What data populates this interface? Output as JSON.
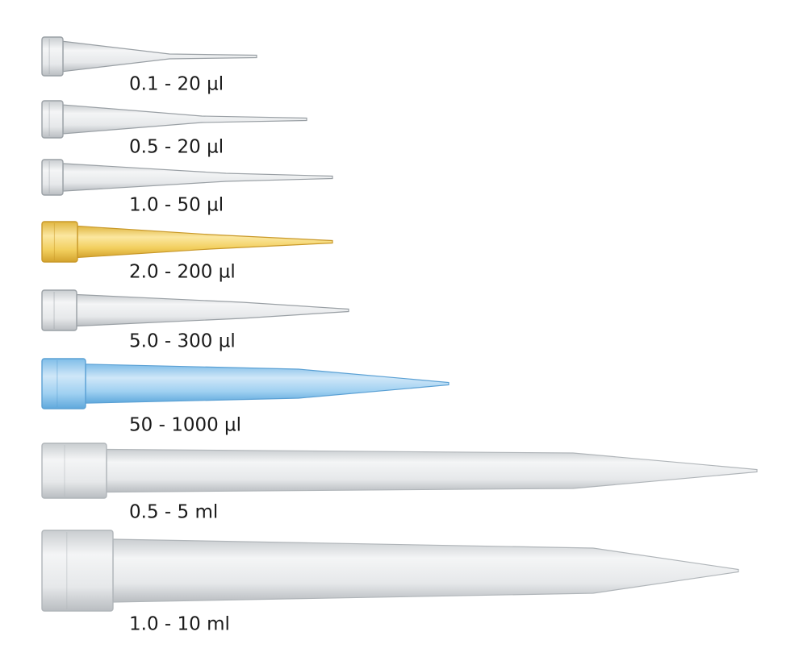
{
  "tips": [
    {
      "label": "0.1 - 20 µl"
    },
    {
      "label": "0.5 - 20 µl"
    },
    {
      "label": "1.0 - 50 µl"
    },
    {
      "label": "2.0 - 200 µl"
    },
    {
      "label": "5.0 - 300 µl"
    },
    {
      "label": "50 - 1000 µl"
    },
    {
      "label": "0.5 - 5 ml"
    },
    {
      "label": "1.0 - 10 ml"
    }
  ]
}
